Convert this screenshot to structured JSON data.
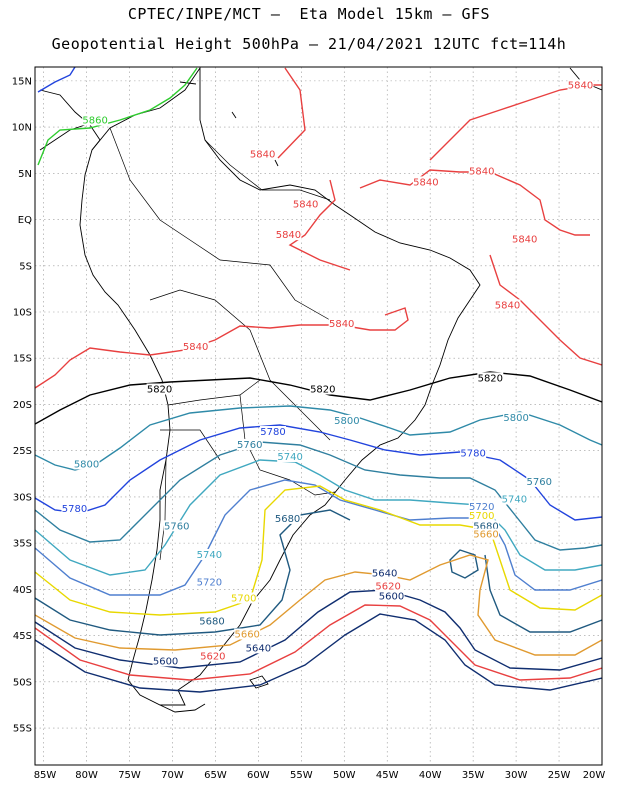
{
  "title_line1": "CPTEC/INPE/MCT –  Eta Model 15km – GFS",
  "title_line2": "Geopotential Height 500hPa – 21/04/2021 12UTC fct=114h",
  "lat_labels": [
    "15N",
    "10N",
    "5N",
    "EQ",
    "5S",
    "10S",
    "15S",
    "20S",
    "25S",
    "30S",
    "35S",
    "40S",
    "45S",
    "50S",
    "55S"
  ],
  "lon_labels": [
    "85W",
    "80W",
    "75W",
    "70W",
    "65W",
    "60W",
    "55W",
    "50W",
    "45W",
    "40W",
    "35W",
    "30W",
    "25W",
    "20W"
  ],
  "contour_labels": [
    {
      "text": "5860",
      "color": "#2ecc2e",
      "lon": -79,
      "lat": 10.5
    },
    {
      "text": "5840",
      "color": "#e84040",
      "lon": -22.5,
      "lat": 14.3
    },
    {
      "text": "5840",
      "color": "#e84040",
      "lon": -59.5,
      "lat": 6.8
    },
    {
      "text": "5840",
      "color": "#e84040",
      "lon": -40.5,
      "lat": 3.8
    },
    {
      "text": "5840",
      "color": "#e84040",
      "lon": -34,
      "lat": 5
    },
    {
      "text": "5840",
      "color": "#e84040",
      "lon": -54.5,
      "lat": 1.4
    },
    {
      "text": "5840",
      "color": "#e84040",
      "lon": -56.5,
      "lat": -1.9
    },
    {
      "text": "5840",
      "color": "#e84040",
      "lon": -29,
      "lat": -2.4
    },
    {
      "text": "5840",
      "color": "#e84040",
      "lon": -31,
      "lat": -9.5
    },
    {
      "text": "5840",
      "color": "#e84040",
      "lon": -50.3,
      "lat": -11.5
    },
    {
      "text": "5840",
      "color": "#e84040",
      "lon": -67.3,
      "lat": -14
    },
    {
      "text": "5820",
      "color": "#000000",
      "lon": -71.5,
      "lat": -18.6
    },
    {
      "text": "5820",
      "color": "#000000",
      "lon": -52.5,
      "lat": -18.6
    },
    {
      "text": "5820",
      "color": "#000000",
      "lon": -33,
      "lat": -17.4
    },
    {
      "text": "5800",
      "color": "#2f8aa8",
      "lon": -49.7,
      "lat": -22
    },
    {
      "text": "5800",
      "color": "#2f8aa8",
      "lon": -30,
      "lat": -21.7
    },
    {
      "text": "5800",
      "color": "#2f8aa8",
      "lon": -80,
      "lat": -26.7
    },
    {
      "text": "5780",
      "color": "#2244dd",
      "lon": -58.3,
      "lat": -23.2
    },
    {
      "text": "5780",
      "color": "#2244dd",
      "lon": -35,
      "lat": -25.5
    },
    {
      "text": "5780",
      "color": "#2244dd",
      "lon": -81.4,
      "lat": -31.5
    },
    {
      "text": "5760",
      "color": "#2f7f9f",
      "lon": -61,
      "lat": -24.6
    },
    {
      "text": "5760",
      "color": "#2f7f9f",
      "lon": -27.3,
      "lat": -28.6
    },
    {
      "text": "5760",
      "color": "#2f7f9f",
      "lon": -69.5,
      "lat": -33.4
    },
    {
      "text": "5740",
      "color": "#40a8c0",
      "lon": -56.3,
      "lat": -25.9
    },
    {
      "text": "5740",
      "color": "#40a8c0",
      "lon": -30.2,
      "lat": -30.5
    },
    {
      "text": "5740",
      "color": "#40a8c0",
      "lon": -65.7,
      "lat": -36.5
    },
    {
      "text": "5720",
      "color": "#4f7fcf",
      "lon": -34,
      "lat": -31.3
    },
    {
      "text": "5720",
      "color": "#4f7fcf",
      "lon": -65.7,
      "lat": -39.5
    },
    {
      "text": "5700",
      "color": "#e8d800",
      "lon": -34,
      "lat": -32.3
    },
    {
      "text": "5700",
      "color": "#e8d800",
      "lon": -61.7,
      "lat": -41.2
    },
    {
      "text": "5680",
      "color": "#205a80",
      "lon": -56.6,
      "lat": -32.6
    },
    {
      "text": "5680",
      "color": "#205a80",
      "lon": -33.5,
      "lat": -33.4
    },
    {
      "text": "5680",
      "color": "#205a80",
      "lon": -65.4,
      "lat": -43.7
    },
    {
      "text": "5660",
      "color": "#e09a30",
      "lon": -33.5,
      "lat": -34.3
    },
    {
      "text": "5660",
      "color": "#e09a30",
      "lon": -61.3,
      "lat": -45.1
    },
    {
      "text": "5640",
      "color": "#102e70",
      "lon": -45.3,
      "lat": -38.5
    },
    {
      "text": "5640",
      "color": "#102e70",
      "lon": -60,
      "lat": -46.6
    },
    {
      "text": "5620",
      "color": "#e84040",
      "lon": -44.9,
      "lat": -39.9
    },
    {
      "text": "5620",
      "color": "#e84040",
      "lon": -65.3,
      "lat": -47.5
    },
    {
      "text": "5600",
      "color": "#102e70",
      "lon": -44.5,
      "lat": -41
    },
    {
      "text": "5600",
      "color": "#102e70",
      "lon": -70.8,
      "lat": -48
    }
  ],
  "colors": {
    "5860": "#2ecc2e",
    "5840": "#e84040",
    "5820": "#000000",
    "5800": "#2f8aa8",
    "5780": "#2244dd",
    "5760": "#2f7f9f",
    "5740": "#40a8c0",
    "5720": "#4f7fcf",
    "5700": "#e8d800",
    "5680": "#205a80",
    "5660": "#e09a30",
    "5640": "#102e70",
    "5620": "#e84040",
    "5600": "#102e70"
  }
}
